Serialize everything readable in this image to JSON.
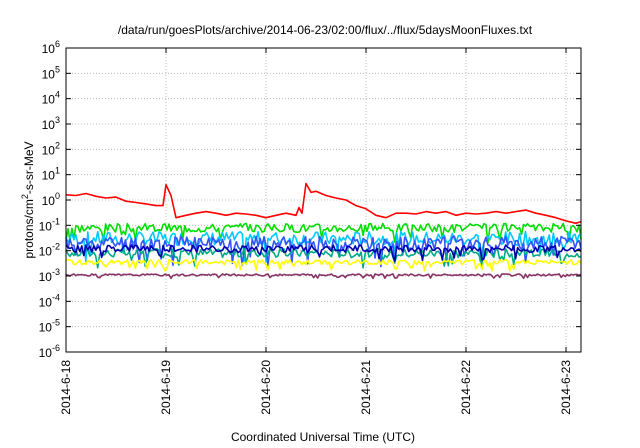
{
  "chart_data": {
    "type": "line",
    "title": "/data/run/goesPlots/archive/2014-06-23/02:00/flux/../flux/5daysMoonFluxes.txt",
    "xlabel": "Coordinated Universal Time (UTC)",
    "ylabel_base": "protons/cm",
    "ylabel_sup": "2",
    "ylabel_rest": "-s-sr-MeV",
    "yscale": "log",
    "ylim": [
      1e-06,
      1000000.0
    ],
    "xlim": [
      0,
      5.15
    ],
    "grid": true,
    "x_ticks": [
      {
        "x": 0,
        "label": "2014-6-18"
      },
      {
        "x": 1,
        "label": "2014-6-19"
      },
      {
        "x": 2,
        "label": "2014-6-20"
      },
      {
        "x": 3,
        "label": "2014-6-21"
      },
      {
        "x": 4,
        "label": "2014-6-22"
      },
      {
        "x": 5,
        "label": "2014-6-23"
      }
    ],
    "y_ticks": [
      {
        "exp": -6,
        "label": "10",
        "sup": "-6"
      },
      {
        "exp": -5,
        "label": "10",
        "sup": "-5"
      },
      {
        "exp": -4,
        "label": "10",
        "sup": "-4"
      },
      {
        "exp": -3,
        "label": "10",
        "sup": "-3"
      },
      {
        "exp": -2,
        "label": "10",
        "sup": "-2"
      },
      {
        "exp": -1,
        "label": "10",
        "sup": "-1"
      },
      {
        "exp": 0,
        "label": "10",
        "sup": "0"
      },
      {
        "exp": 1,
        "label": "10",
        "sup": "1"
      },
      {
        "exp": 2,
        "label": "10",
        "sup": "2"
      },
      {
        "exp": 3,
        "label": "10",
        "sup": "3"
      },
      {
        "exp": 4,
        "label": "10",
        "sup": "4"
      },
      {
        "exp": 5,
        "label": "10",
        "sup": "5"
      },
      {
        "exp": 6,
        "label": "10",
        "sup": "6"
      }
    ],
    "series": [
      {
        "color": "#ff0000",
        "x": [
          0,
          0.1,
          0.2,
          0.3,
          0.4,
          0.5,
          0.6,
          0.7,
          0.8,
          0.9,
          0.97,
          1.0,
          1.05,
          1.1,
          1.2,
          1.3,
          1.4,
          1.5,
          1.6,
          1.7,
          1.8,
          1.9,
          2.0,
          2.1,
          2.2,
          2.3,
          2.33,
          2.36,
          2.4,
          2.45,
          2.5,
          2.6,
          2.7,
          2.8,
          2.9,
          3.0,
          3.1,
          3.2,
          3.3,
          3.4,
          3.5,
          3.6,
          3.7,
          3.8,
          3.9,
          4.0,
          4.1,
          4.2,
          4.3,
          4.4,
          4.5,
          4.6,
          4.7,
          4.8,
          4.9,
          5.0,
          5.1,
          5.15
        ],
        "y": [
          1.6,
          1.5,
          1.8,
          1.4,
          1.2,
          1.3,
          0.9,
          0.8,
          0.7,
          0.6,
          0.6,
          4.0,
          1.5,
          0.2,
          0.25,
          0.3,
          0.35,
          0.3,
          0.25,
          0.3,
          0.28,
          0.25,
          0.2,
          0.25,
          0.3,
          0.25,
          0.5,
          0.3,
          4.5,
          2.0,
          2.2,
          1.5,
          1.2,
          1.0,
          0.6,
          0.45,
          0.25,
          0.2,
          0.3,
          0.3,
          0.28,
          0.35,
          0.3,
          0.35,
          0.25,
          0.3,
          0.28,
          0.3,
          0.35,
          0.3,
          0.35,
          0.4,
          0.3,
          0.25,
          0.2,
          0.15,
          0.12,
          0.14
        ]
      },
      {
        "color": "#00dd00",
        "base": 0.08,
        "amp": 0.35,
        "seed": 3
      },
      {
        "color": "#00c8ff",
        "base": 0.03,
        "amp": 0.55,
        "seed": 7
      },
      {
        "color": "#3355ff",
        "base": 0.02,
        "amp": 0.55,
        "seed": 11
      },
      {
        "color": "#00aa88",
        "base": 0.008,
        "amp": 0.35,
        "seed": 17
      },
      {
        "color": "#0000aa",
        "base": 0.012,
        "amp": 0.3,
        "seed": 23
      },
      {
        "color": "#ffff00",
        "base": 0.0035,
        "amp": 0.2,
        "seed": 29
      },
      {
        "color": "#883366",
        "base": 0.0011,
        "amp": 0.08,
        "seed": 31
      }
    ]
  }
}
